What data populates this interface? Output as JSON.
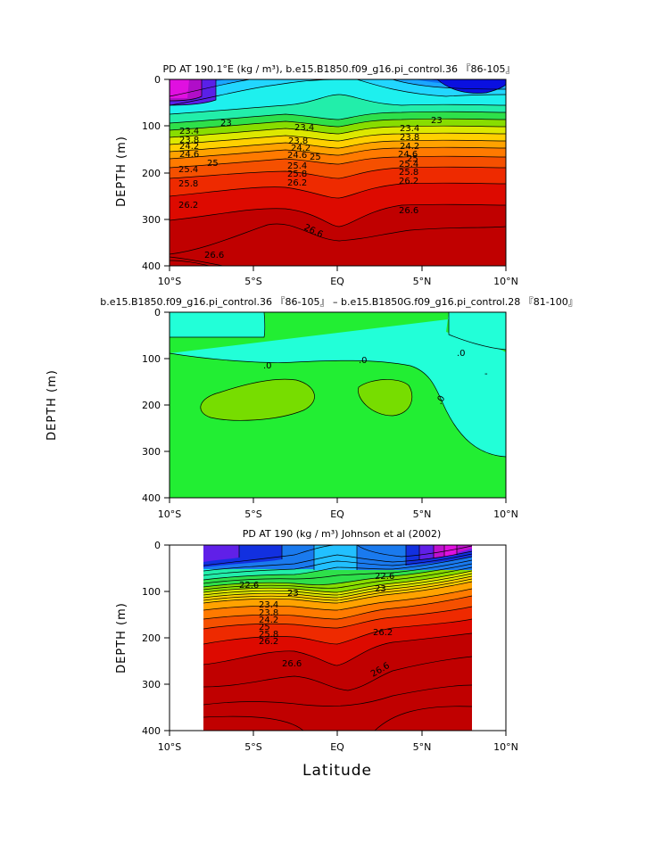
{
  "chart_data": [
    {
      "type": "contour",
      "title": "PD AT 190.1°E (kg / m³), b.e15.B1850.f09_g16.pi_control.36 『86-105』",
      "xlabel": "",
      "ylabel": "DEPTH (m)",
      "xlim": [
        -10,
        10
      ],
      "ylim": [
        400,
        0
      ],
      "x_ticks": [
        "10°S",
        "5°S",
        "EQ",
        "5°N",
        "10°N"
      ],
      "y_ticks": [
        "0",
        "100",
        "200",
        "300",
        "400"
      ],
      "contour_labels": [
        "23",
        "23.4",
        "23.8",
        "24.2",
        "24.6",
        "25",
        "25.4",
        "25.8",
        "26.2",
        "26.6"
      ]
    },
    {
      "type": "contour",
      "title": "b.e15.B1850.f09_g16.pi_control.36 『86-105』 – b.e15.B1850G.f09_g16.pi_control.28 『81-100』",
      "xlabel": "",
      "ylabel": "DEPTH (m)",
      "xlim": [
        -10,
        10
      ],
      "ylim": [
        400,
        0
      ],
      "x_ticks": [
        "10°S",
        "5°S",
        "EQ",
        "5°N",
        "10°N"
      ],
      "y_ticks": [
        "0",
        "100",
        "200",
        "300",
        "400"
      ],
      "contour_labels": [
        ".0",
        ".0",
        ".0",
        ".0",
        "-"
      ]
    },
    {
      "type": "contour",
      "title": "PD AT 190 (kg / m³) Johnson et al (2002)",
      "xlabel": "Latitude",
      "ylabel": "DEPTH (m)",
      "xlim": [
        -10,
        10
      ],
      "ylim": [
        400,
        0
      ],
      "data_extent_lat": [
        -8,
        8
      ],
      "x_ticks": [
        "10°S",
        "5°S",
        "EQ",
        "5°N",
        "10°N"
      ],
      "y_ticks": [
        "0",
        "100",
        "200",
        "300",
        "400"
      ],
      "contour_labels": [
        "22.6",
        "22.6",
        "23",
        "23",
        "23.4",
        "23.8",
        "24.2",
        "25",
        "25.8",
        "26.2",
        "26.2",
        "26.6",
        "26.6"
      ]
    }
  ]
}
